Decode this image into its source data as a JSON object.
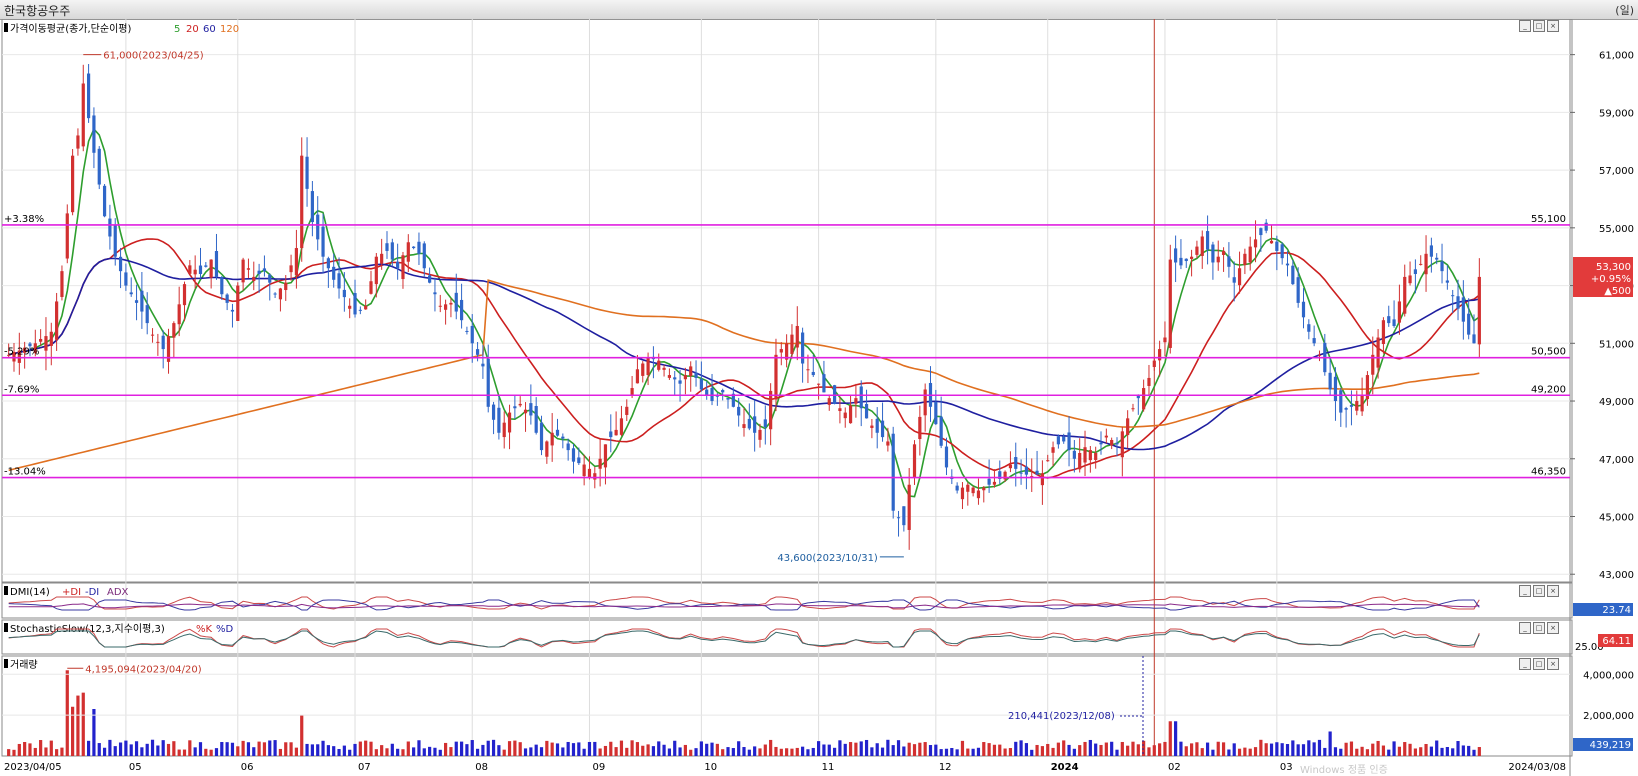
{
  "header": {
    "title": "한국항공우주",
    "unit": "(일)"
  },
  "main_panel": {
    "legend_title": "가격이동평균(종가,단순이평)",
    "ma_periods": [
      {
        "label": "5",
        "color": "#2e9e2e"
      },
      {
        "label": "20",
        "color": "#cc1f1f"
      },
      {
        "label": "60",
        "color": "#1f1fa0"
      },
      {
        "label": "120",
        "color": "#e07020"
      }
    ],
    "price_axis_labels": [
      "61,000",
      "59,000",
      "57,000",
      "55,000",
      "53,000",
      "51,000",
      "49,000",
      "47,000",
      "45,000",
      "43,000"
    ],
    "levels": [
      {
        "left_label": "+3.38%",
        "right_label": "55,100",
        "value": 55100
      },
      {
        "left_label": "-5.29%",
        "right_label": "50,500",
        "value": 50500
      },
      {
        "left_label": "-7.69%",
        "right_label": "49,200",
        "value": 49200
      },
      {
        "left_label": "-13.04%",
        "right_label": "46,350",
        "value": 46350
      }
    ],
    "high_annotation": "61,000(2023/04/25)",
    "low_annotation": "43,600(2023/10/31)",
    "current_price": "53,300",
    "current_change_pct": "+0.95%",
    "current_change": "▲500"
  },
  "dmi_panel": {
    "label": "DMI(14)",
    "series": [
      "+DI",
      "-DI",
      "ADX"
    ],
    "value": "23.74"
  },
  "stoch_panel": {
    "label": "StochasticSlow(12,3,지수이평,3)",
    "series": [
      "%K",
      "%D"
    ],
    "value": "64.11",
    "axis_label": "25.00"
  },
  "volume_panel": {
    "label": "거래량",
    "peak_annotation": "4,195,094(2023/04/20)",
    "low_annotation": "210,441(2023/12/08)",
    "axis_labels": [
      "4,000,000",
      "2,000,000"
    ],
    "current_volume": "439,219"
  },
  "x_axis": {
    "labels": [
      "2023/04/05",
      "05",
      "06",
      "07",
      "08",
      "09",
      "10",
      "11",
      "12",
      "2024",
      "02",
      "03",
      "2024/03/08"
    ]
  },
  "watermark": "Windows 정품 인증",
  "chart_data": {
    "type": "candlestick",
    "ylim": [
      42800,
      62200
    ],
    "price_ticks": [
      43000,
      45000,
      47000,
      49000,
      51000,
      53000,
      55000,
      57000,
      59000,
      61000
    ],
    "volume_ticks": [
      2000000,
      4000000
    ],
    "volume_max": 4600000,
    "anchors": [
      [
        0,
        50600
      ],
      [
        5,
        51000
      ],
      [
        8,
        51400
      ],
      [
        10,
        53500
      ],
      [
        12,
        57500
      ],
      [
        13,
        58200
      ],
      [
        14,
        60000
      ],
      [
        16,
        57600
      ],
      [
        18,
        55400
      ],
      [
        20,
        54000
      ],
      [
        22,
        53000
      ],
      [
        25,
        52100
      ],
      [
        27,
        51300
      ],
      [
        29,
        50800
      ],
      [
        31,
        51700
      ],
      [
        34,
        53700
      ],
      [
        36,
        53400
      ],
      [
        38,
        53900
      ],
      [
        40,
        52700
      ],
      [
        42,
        52100
      ],
      [
        44,
        53900
      ],
      [
        46,
        53300
      ],
      [
        48,
        53500
      ],
      [
        50,
        52700
      ],
      [
        52,
        53100
      ],
      [
        54,
        54300
      ],
      [
        55,
        57500
      ],
      [
        57,
        55200
      ],
      [
        59,
        54000
      ],
      [
        61,
        53200
      ],
      [
        63,
        52600
      ],
      [
        65,
        52000
      ],
      [
        67,
        52300
      ],
      [
        69,
        54000
      ],
      [
        71,
        54200
      ],
      [
        73,
        53600
      ],
      [
        75,
        54500
      ],
      [
        77,
        54100
      ],
      [
        79,
        53100
      ],
      [
        81,
        52300
      ],
      [
        83,
        52400
      ],
      [
        85,
        51800
      ],
      [
        87,
        51000
      ],
      [
        89,
        50200
      ],
      [
        90,
        48800
      ],
      [
        92,
        47900
      ],
      [
        94,
        48600
      ],
      [
        96,
        48900
      ],
      [
        98,
        48500
      ],
      [
        100,
        47300
      ],
      [
        102,
        47900
      ],
      [
        104,
        47700
      ],
      [
        106,
        46900
      ],
      [
        108,
        46800
      ],
      [
        110,
        46500
      ],
      [
        112,
        47500
      ],
      [
        114,
        48000
      ],
      [
        116,
        48800
      ],
      [
        118,
        50100
      ],
      [
        120,
        50500
      ],
      [
        122,
        50400
      ],
      [
        124,
        49900
      ],
      [
        126,
        49600
      ],
      [
        128,
        50200
      ],
      [
        130,
        49400
      ],
      [
        132,
        49000
      ],
      [
        134,
        49300
      ],
      [
        136,
        48800
      ],
      [
        138,
        48200
      ],
      [
        140,
        47900
      ],
      [
        142,
        48100
      ],
      [
        144,
        50600
      ],
      [
        146,
        51000
      ],
      [
        148,
        51600
      ],
      [
        149,
        50300
      ],
      [
        151,
        49900
      ],
      [
        153,
        49300
      ],
      [
        155,
        48900
      ],
      [
        157,
        48600
      ],
      [
        159,
        49100
      ],
      [
        161,
        48400
      ],
      [
        163,
        47900
      ],
      [
        165,
        47600
      ],
      [
        166,
        45200
      ],
      [
        168,
        44700
      ],
      [
        170,
        47500
      ],
      [
        172,
        49400
      ],
      [
        174,
        48200
      ],
      [
        176,
        46700
      ],
      [
        178,
        45900
      ],
      [
        180,
        46100
      ],
      [
        182,
        45900
      ],
      [
        184,
        46100
      ],
      [
        186,
        46300
      ],
      [
        188,
        46800
      ],
      [
        190,
        46500
      ],
      [
        192,
        46400
      ],
      [
        194,
        46500
      ],
      [
        196,
        47400
      ],
      [
        198,
        47600
      ],
      [
        200,
        47000
      ],
      [
        202,
        47400
      ],
      [
        204,
        47200
      ],
      [
        206,
        47800
      ],
      [
        208,
        47500
      ],
      [
        210,
        48400
      ],
      [
        212,
        49100
      ],
      [
        214,
        49800
      ],
      [
        215,
        50400
      ],
      [
        217,
        51200
      ],
      [
        218,
        53900
      ],
      [
        220,
        53700
      ],
      [
        222,
        54000
      ],
      [
        224,
        54700
      ],
      [
        226,
        53800
      ],
      [
        228,
        54200
      ],
      [
        230,
        53100
      ],
      [
        232,
        54100
      ],
      [
        234,
        54600
      ],
      [
        236,
        54900
      ],
      [
        238,
        54200
      ],
      [
        240,
        53700
      ],
      [
        242,
        52400
      ],
      [
        244,
        51400
      ],
      [
        246,
        50600
      ],
      [
        248,
        49400
      ],
      [
        250,
        48600
      ],
      [
        252,
        48800
      ],
      [
        254,
        49200
      ],
      [
        256,
        50600
      ],
      [
        258,
        51800
      ],
      [
        260,
        51600
      ],
      [
        262,
        53300
      ],
      [
        264,
        53400
      ],
      [
        266,
        54100
      ],
      [
        268,
        53900
      ],
      [
        270,
        53100
      ],
      [
        272,
        52200
      ],
      [
        274,
        51300
      ],
      [
        275,
        51000
      ],
      [
        276,
        53300
      ]
    ],
    "high_point": {
      "value": 61000,
      "date": "2023/04/25"
    },
    "low_point": {
      "value": 43600,
      "date": "2023/10/31"
    },
    "volume_peak": {
      "value": 4195094,
      "date": "2023/04/20"
    },
    "volume_low": {
      "value": 210441,
      "date": "2023/12/08"
    },
    "last_close": 53300,
    "last_volume": 439219
  }
}
